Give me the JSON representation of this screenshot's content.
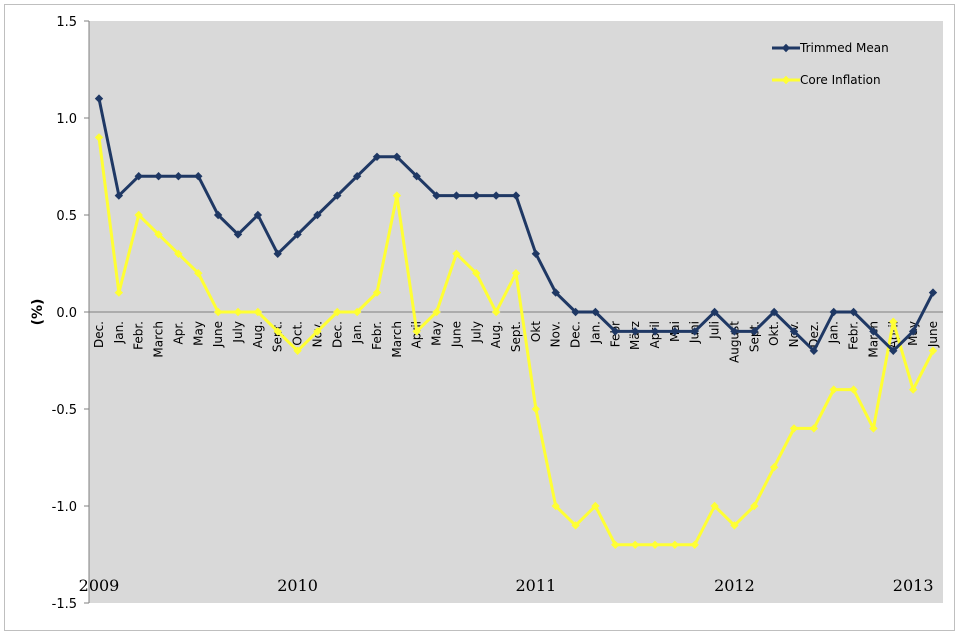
{
  "chart_data": {
    "type": "line",
    "title": "",
    "xlabel": "",
    "ylabel": "(%)",
    "ylim": [
      -1.5,
      1.5
    ],
    "yticks": [
      1.5,
      1.0,
      0.5,
      0.0,
      -0.5,
      -1.0,
      -1.5
    ],
    "ytick_labels": [
      "1.5",
      "1.0",
      "0.5",
      "0.0",
      "-0.5",
      "-1.0",
      "-1.5"
    ],
    "grid": false,
    "legend_position": "top-right",
    "categories": [
      "Dec.",
      "Jan.",
      "Febr.",
      "March",
      "Apr.",
      "May",
      "June",
      "July",
      "Aug.",
      "Sept.",
      "Oct.",
      "Nov.",
      "Dec.",
      "Jan.",
      "Febr.",
      "March",
      "April",
      "May",
      "June",
      "July",
      "Aug.",
      "Sept.",
      "Okt",
      "Nov.",
      "Dec.",
      "Jan.",
      "Febr",
      "März",
      "April",
      "Mai",
      "Juni",
      "Juli",
      "August",
      "Sept.",
      "Okt.",
      "Nov.",
      "Dez.",
      "Jan.",
      "Febr.",
      "March",
      "April",
      "May",
      "June"
    ],
    "years": [
      {
        "label": "2009",
        "index": 0
      },
      {
        "label": "2010",
        "index": 10
      },
      {
        "label": "2011",
        "index": 22
      },
      {
        "label": "2012",
        "index": 32
      },
      {
        "label": "2013",
        "index": 41
      }
    ],
    "series": [
      {
        "name": "Trimmed Mean",
        "color": "#1f3864",
        "marker": "diamond",
        "values": [
          1.1,
          0.6,
          0.7,
          0.7,
          0.7,
          0.7,
          0.5,
          0.4,
          0.5,
          0.3,
          0.4,
          0.5,
          0.6,
          0.7,
          0.8,
          0.8,
          0.7,
          0.6,
          0.6,
          0.6,
          0.6,
          0.6,
          0.3,
          0.1,
          0.0,
          0.0,
          -0.1,
          -0.1,
          -0.1,
          -0.1,
          -0.1,
          0.0,
          -0.1,
          -0.1,
          0.0,
          -0.1,
          -0.2,
          0.0,
          0.0,
          -0.1,
          -0.2,
          -0.1,
          0.1
        ]
      },
      {
        "name": "Core Inflation",
        "color": "#ffff33",
        "marker": "diamond",
        "values": [
          0.9,
          0.1,
          0.5,
          0.4,
          0.3,
          0.2,
          0.0,
          0.0,
          0.0,
          -0.1,
          -0.2,
          -0.1,
          0.0,
          0.0,
          0.1,
          0.6,
          -0.1,
          0.0,
          0.3,
          0.2,
          0.0,
          0.2,
          -0.5,
          -1.0,
          -1.1,
          -1.0,
          -1.2,
          -1.2,
          -1.2,
          -1.2,
          -1.2,
          -1.0,
          -1.1,
          -1.0,
          -0.8,
          -0.6,
          -0.6,
          -0.4,
          -0.4,
          -0.6,
          -0.05,
          -0.4,
          -0.2
        ]
      }
    ],
    "colors": {
      "plot_background": "#d9d9d9",
      "axis": "#808080"
    }
  }
}
